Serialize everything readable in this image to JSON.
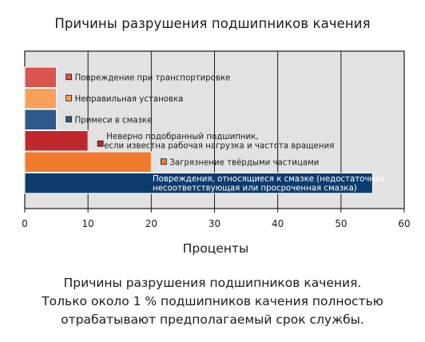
{
  "chart_data": {
    "type": "bar",
    "orientation": "horizontal",
    "title": "Причины разрушения подшипников качения",
    "xlabel": "Проценты",
    "ylabel": "",
    "xlim": [
      0,
      60
    ],
    "xticks": [
      0,
      10,
      20,
      30,
      40,
      50,
      60
    ],
    "grid": true,
    "categories": [
      "Повреждение при транспортировке",
      "Неправильная установка",
      "Примеси в смазке",
      "Неверно подобранный подшипник,\nесли известна рабочая нагрузка и частота вращения",
      "Загрязнение твёрдыми частицами",
      "Повреждения, относящиеся к смазке (недостаточная,\nнесоответствующая или просроченная смазка)"
    ],
    "values": [
      5,
      5,
      5,
      10,
      20,
      55
    ],
    "colors": [
      "#d9534f",
      "#f7a05a",
      "#2f5a8c",
      "#c0282e",
      "#ef7b2c",
      "#0d3c6e"
    ]
  },
  "caption": [
    "Причины разрушения подшипников качения.",
    "Только около 1 % подшипников качения полностью",
    "отрабатывают предполагаемый срок службы."
  ]
}
